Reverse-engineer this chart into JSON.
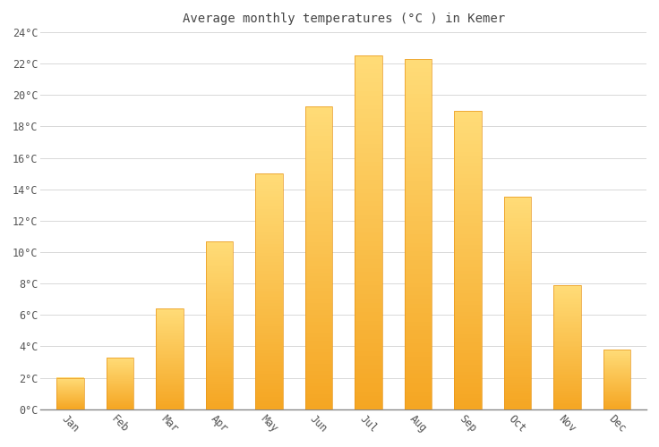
{
  "title": "Average monthly temperatures (°C ) in Kemer",
  "months": [
    "Jan",
    "Feb",
    "Mar",
    "Apr",
    "May",
    "Jun",
    "Jul",
    "Aug",
    "Sep",
    "Oct",
    "Nov",
    "Dec"
  ],
  "values": [
    2.0,
    3.3,
    6.4,
    10.7,
    15.0,
    19.3,
    22.5,
    22.3,
    19.0,
    13.5,
    7.9,
    3.8
  ],
  "ylim": [
    0,
    24
  ],
  "yticks": [
    0,
    2,
    4,
    6,
    8,
    10,
    12,
    14,
    16,
    18,
    20,
    22,
    24
  ],
  "ytick_labels": [
    "0°C",
    "2°C",
    "4°C",
    "6°C",
    "8°C",
    "10°C",
    "12°C",
    "14°C",
    "16°C",
    "18°C",
    "20°C",
    "22°C",
    "24°C"
  ],
  "bar_color_bottom": "#F5A623",
  "bar_color_mid": "#FFC03A",
  "bar_color_top": "#FFD060",
  "background_color": "#ffffff",
  "grid_color": "#d8d8d8",
  "title_fontsize": 10,
  "tick_fontsize": 8.5,
  "bar_width": 0.55,
  "xlabel_rotation": -45
}
